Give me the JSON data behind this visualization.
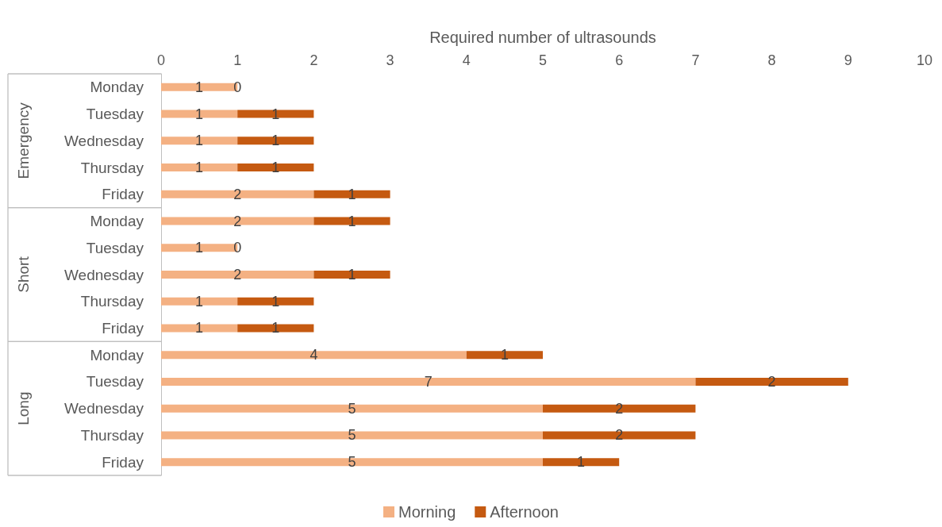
{
  "chart_data": {
    "type": "bar",
    "orientation": "horizontal",
    "stacked": true,
    "xlabel": "Required number of ultrasounds",
    "categories": [
      "Monday",
      "Tuesday",
      "Wednesday",
      "Thursday",
      "Friday",
      "Monday",
      "Tuesday",
      "Wednesday",
      "Thursday",
      "Friday",
      "Monday",
      "Tuesday",
      "Wednesday",
      "Thursday",
      "Friday"
    ],
    "annotations": [
      "Emergency",
      "Short",
      "Long"
    ],
    "series": [
      {
        "name": "Morning",
        "color": "#f4b183",
        "values": [
          1,
          1,
          1,
          1,
          2,
          2,
          1,
          2,
          1,
          1,
          4,
          7,
          5,
          5,
          5
        ]
      },
      {
        "name": "Afternoon",
        "color": "#c55a11",
        "values": [
          0,
          1,
          1,
          1,
          1,
          1,
          0,
          1,
          1,
          1,
          1,
          2,
          2,
          2,
          1
        ]
      }
    ],
    "xlim": [
      0,
      10
    ],
    "xticks": [
      0,
      1,
      2,
      3,
      4,
      5,
      6,
      7,
      8,
      9,
      10
    ],
    "data_labels": true,
    "legend": "bottom"
  }
}
